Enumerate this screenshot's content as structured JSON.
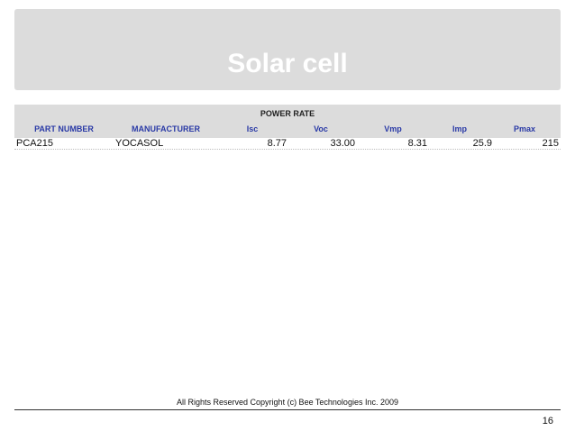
{
  "slide": {
    "title": "Solar cell",
    "footer": "All Rights Reserved Copyright (c) Bee Technologies Inc. 2009",
    "page_number": "16"
  },
  "table": {
    "group_header": "POWER RATE",
    "columns": [
      "PART NUMBER",
      "MANUFACTURER",
      "Isc",
      "Voc",
      "Vmp",
      "Imp",
      "Pmax"
    ],
    "rows": [
      [
        "PCA215",
        "YOCASOL",
        "8.77",
        "33.00",
        "8.31",
        "25.9",
        "215"
      ]
    ]
  },
  "colors": {
    "header_background": "#dcdcdc",
    "title_text": "#ffffff",
    "column_header_text": "#2a3aa6"
  }
}
